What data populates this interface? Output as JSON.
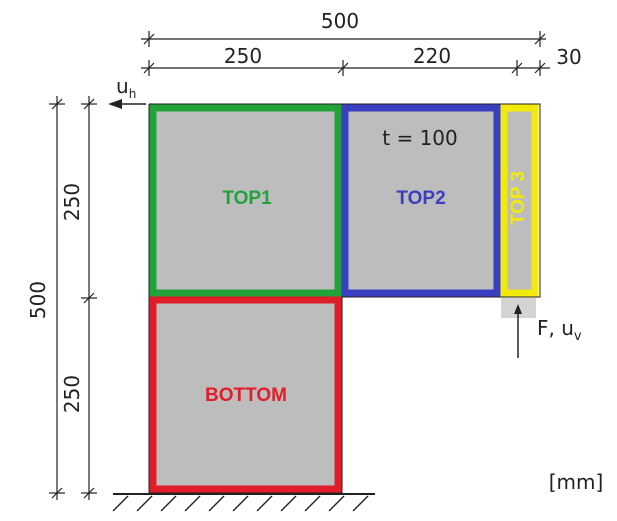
{
  "colors": {
    "fill": "#bdbdbd",
    "top1": "#21a33a",
    "top2": "#3a3fbf",
    "top3": "#f2ea0a",
    "bottom": "#e01e2a",
    "line": "#222222"
  },
  "dimensions": {
    "top_total": "500",
    "top_left": "250",
    "top_mid": "220",
    "top_right": "30",
    "left_total": "500",
    "left_upper": "250",
    "left_lower": "250"
  },
  "blocks": {
    "top1": "TOP1",
    "top2": "TOP2",
    "top3": "TOP 3",
    "bottom": "BOTTOM"
  },
  "thickness": "t = 100",
  "load": {
    "horizontal_symbol": "u",
    "horizontal_subscript": "h",
    "force_text": "F, u",
    "force_subscript": "v"
  },
  "units": "[mm]"
}
